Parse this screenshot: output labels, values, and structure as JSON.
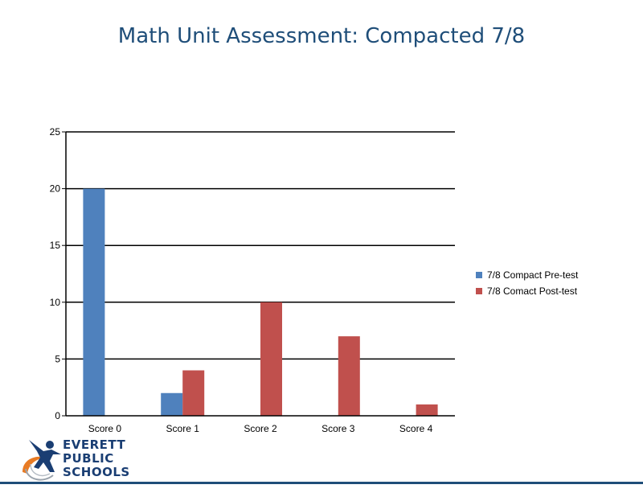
{
  "slide": {
    "title": "Math Unit Assessment: Compacted 7/8"
  },
  "logo": {
    "line1": "EVERETT",
    "line2": "PUBLIC",
    "line3": "SCHOOLS"
  },
  "colors": {
    "title": "#1f4e79",
    "series1": "#4f81bd",
    "series2": "#c0504d",
    "footer": "#1f4e79",
    "logo_blue": "#1a3e73",
    "logo_orange": "#e87b24"
  },
  "chart_data": {
    "type": "bar",
    "title": "",
    "xlabel": "",
    "ylabel": "",
    "categories": [
      "Score 0",
      "Score 1",
      "Score 2",
      "Score 3",
      "Score 4"
    ],
    "series": [
      {
        "name": "7/8 Compact Pre-test",
        "values": [
          20,
          2,
          0,
          0,
          0
        ],
        "color": "#4f81bd"
      },
      {
        "name": "7/8 Comact Post-test",
        "values": [
          0,
          4,
          10,
          7,
          1
        ],
        "color": "#c0504d"
      }
    ],
    "ylim": [
      0,
      25
    ],
    "yticks": [
      0,
      5,
      10,
      15,
      20,
      25
    ],
    "grid": true,
    "legend_position": "right"
  }
}
